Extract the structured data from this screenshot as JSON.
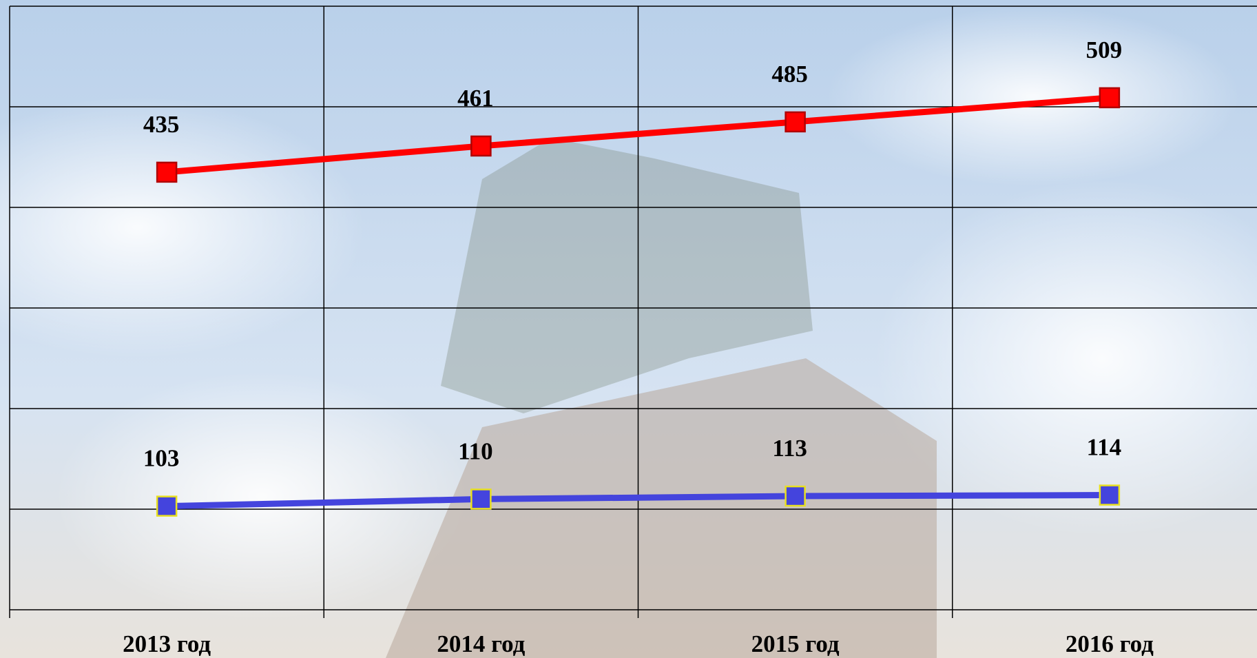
{
  "chart_data": {
    "type": "line",
    "categories": [
      "2013 год",
      "2014 год",
      "2015 год",
      "2016 год"
    ],
    "series": [
      {
        "name": null,
        "color": "#ff0000",
        "marker_edge": "#b00000",
        "values": [
          435,
          461,
          485,
          509
        ]
      },
      {
        "name": null,
        "color": "#4444dd",
        "marker_edge": "#e8e020",
        "values": [
          103,
          110,
          113,
          114
        ]
      }
    ],
    "ylim": [
      0,
      600
    ],
    "yticks": [
      0,
      100,
      200,
      300,
      400,
      500,
      600
    ],
    "grid": true
  }
}
